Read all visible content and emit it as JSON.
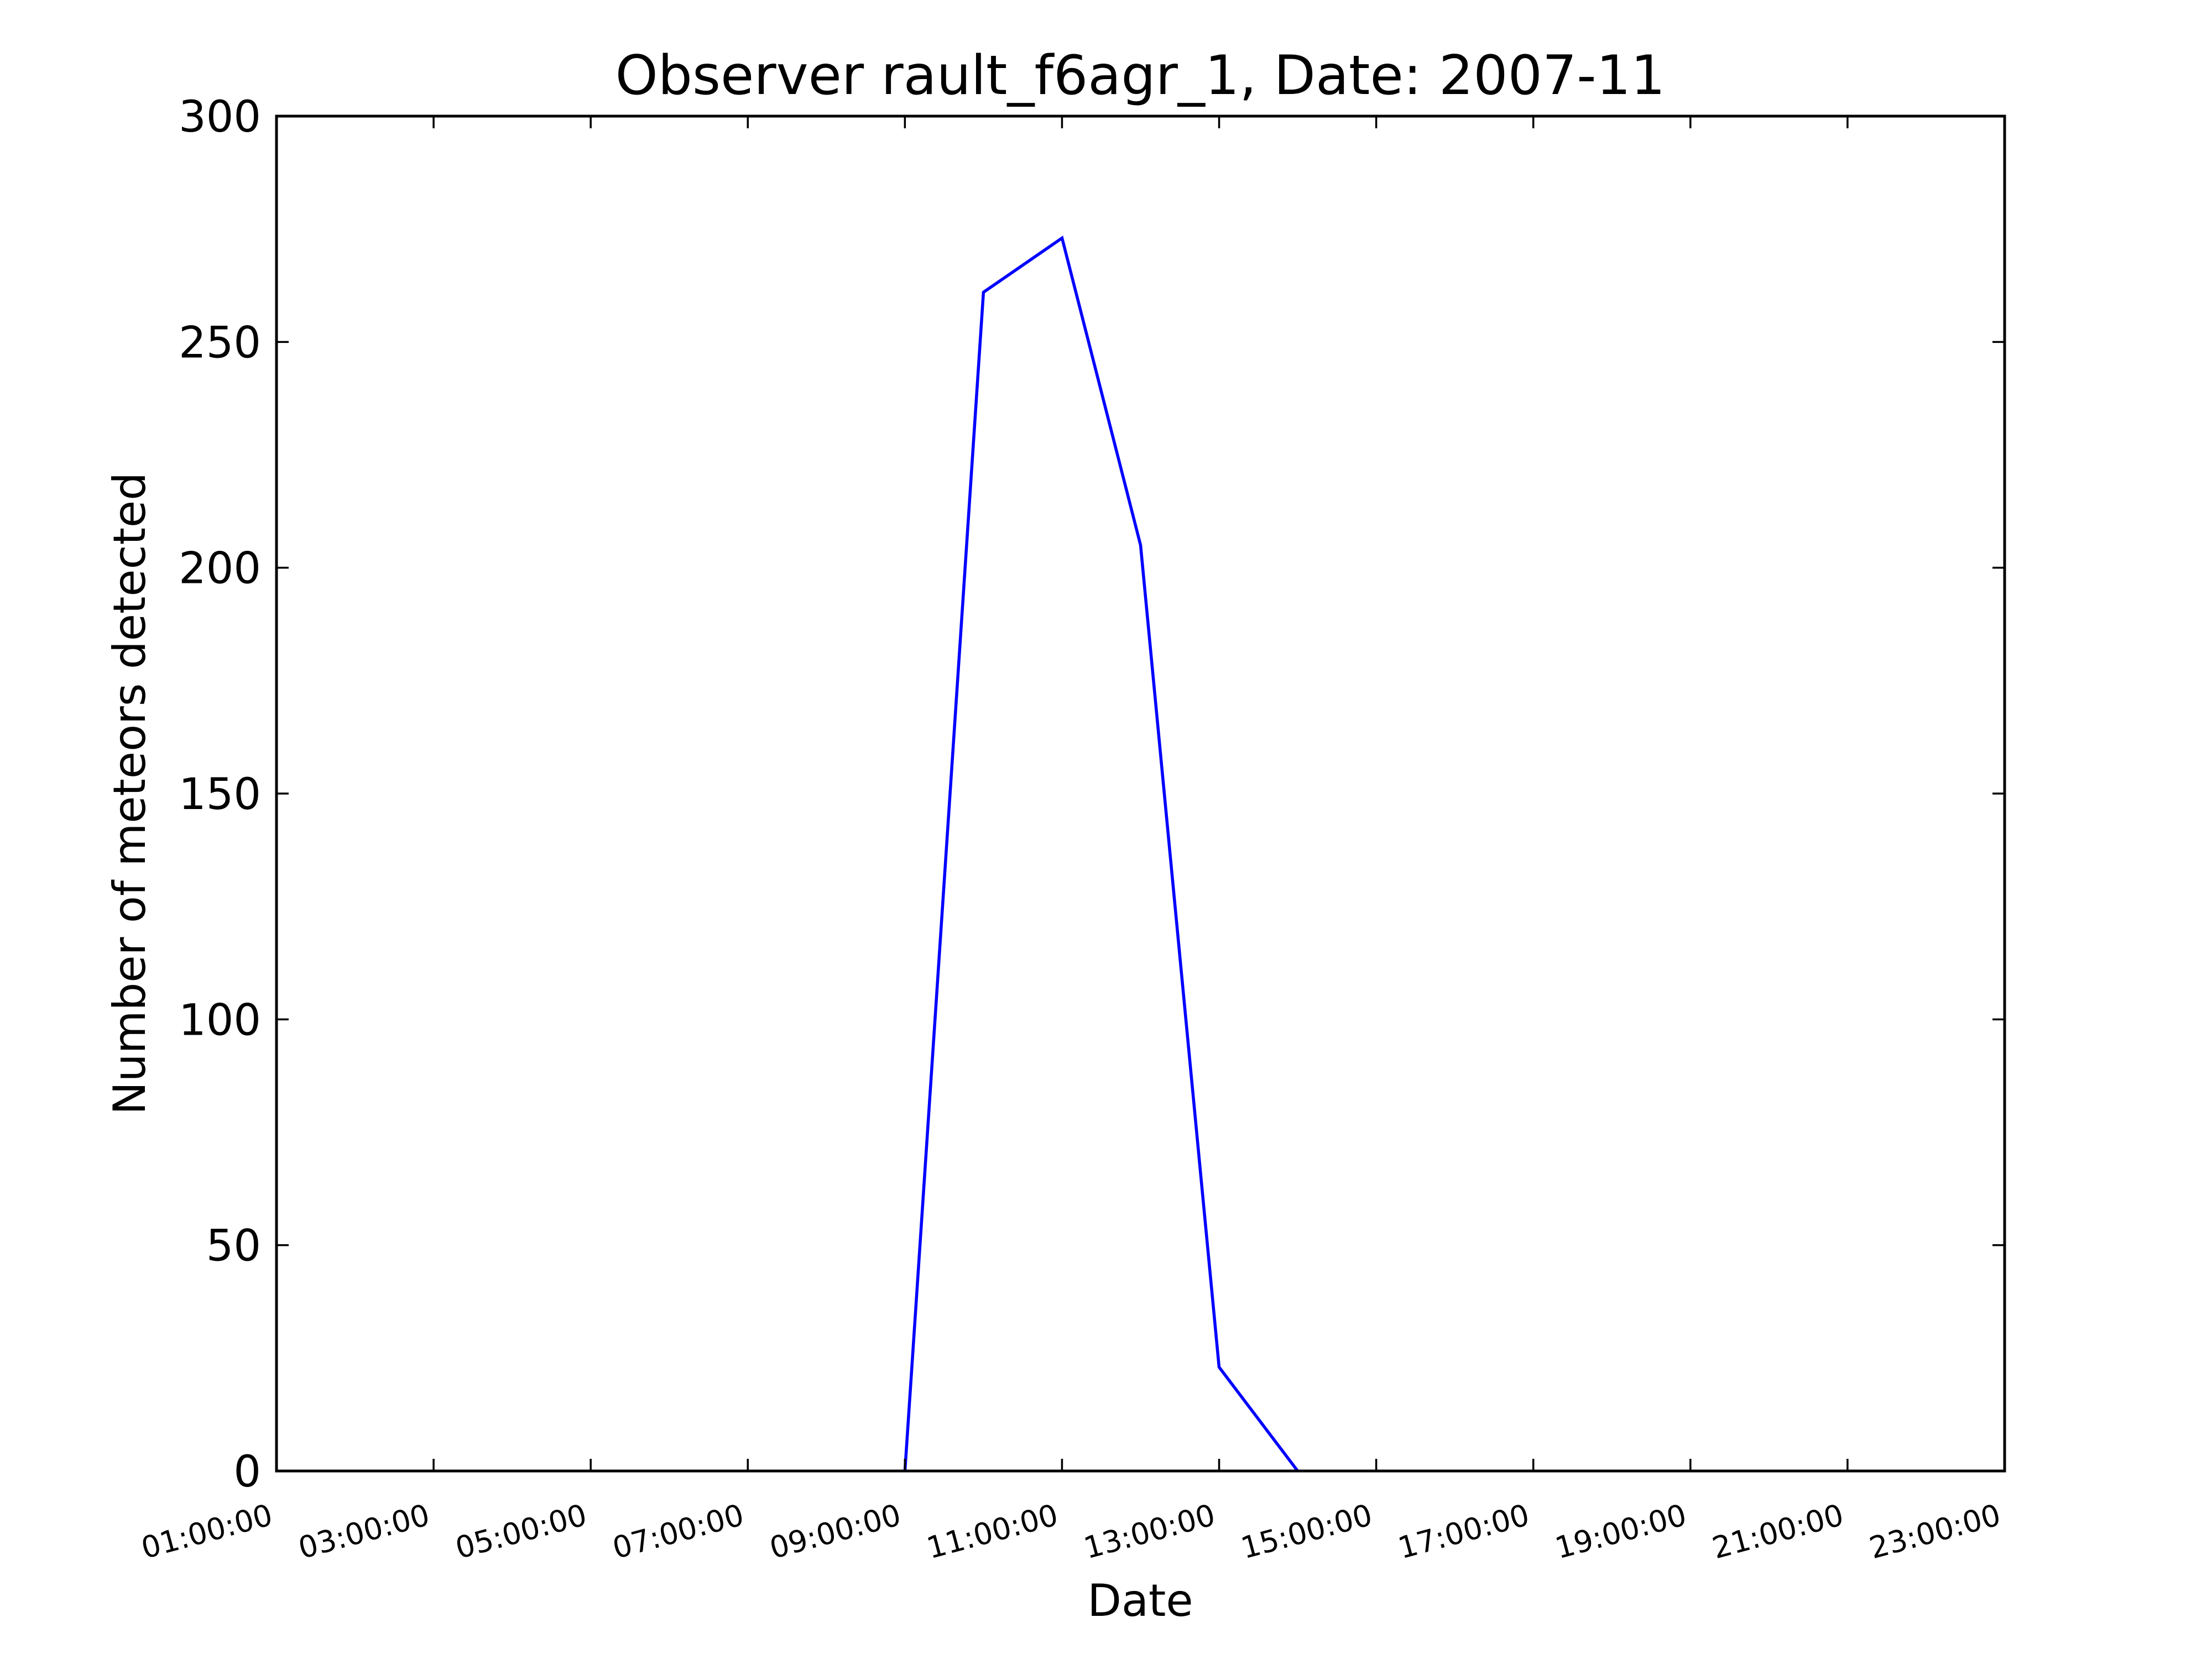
{
  "chart_data": {
    "type": "line",
    "title": "Observer rault_f6agr_1, Date: 2007-11",
    "xlabel": "Date",
    "ylabel": "Number of meteors detected",
    "x_ticks": [
      "01:00:00",
      "03:00:00",
      "05:00:00",
      "07:00:00",
      "09:00:00",
      "11:00:00",
      "13:00:00",
      "15:00:00",
      "17:00:00",
      "19:00:00",
      "21:00:00",
      "23:00:00"
    ],
    "xlim": [
      "01:00:00",
      "23:00:00"
    ],
    "y_ticks": [
      0,
      50,
      100,
      150,
      200,
      250,
      300
    ],
    "ylim": [
      0,
      300
    ],
    "grid": false,
    "series": [
      {
        "color": "#0000ff",
        "points": [
          {
            "x": "09:00:00",
            "y": 0
          },
          {
            "x": "10:00:00",
            "y": 261
          },
          {
            "x": "11:00:00",
            "y": 273
          },
          {
            "x": "12:00:00",
            "y": 205
          },
          {
            "x": "13:00:00",
            "y": 23
          },
          {
            "x": "14:00:00",
            "y": 0
          }
        ]
      }
    ]
  }
}
